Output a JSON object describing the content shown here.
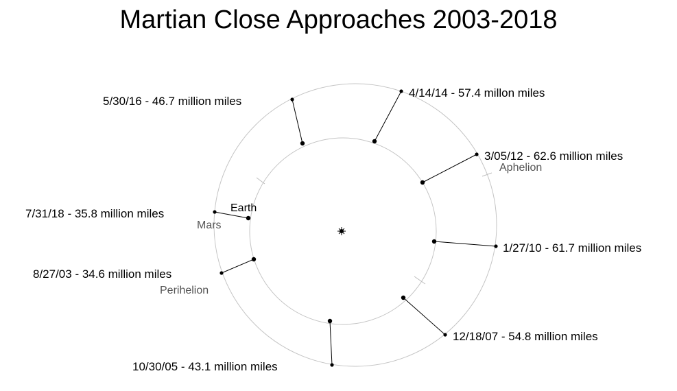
{
  "title": "Martian Close Approaches 2003-2018",
  "orbit_labels": {
    "earth": "Earth",
    "mars": "Mars"
  },
  "apsis_labels": {
    "aphelion": "Aphelion",
    "perihelion": "Perihelion"
  },
  "approaches": [
    {
      "label": "8/27/03 - 34.6 million miles"
    },
    {
      "label": "10/30/05 - 43.1 million miles"
    },
    {
      "label": "12/18/07 - 54.8 million miles"
    },
    {
      "label": "1/27/10 - 61.7 million miles"
    },
    {
      "label": "3/05/12 - 62.6 million miles"
    },
    {
      "label": "4/14/14 - 57.4 millon miles"
    },
    {
      "label": "5/30/16 - 46.7 million miles"
    },
    {
      "label": "7/31/18 - 35.8 million miles"
    }
  ]
}
